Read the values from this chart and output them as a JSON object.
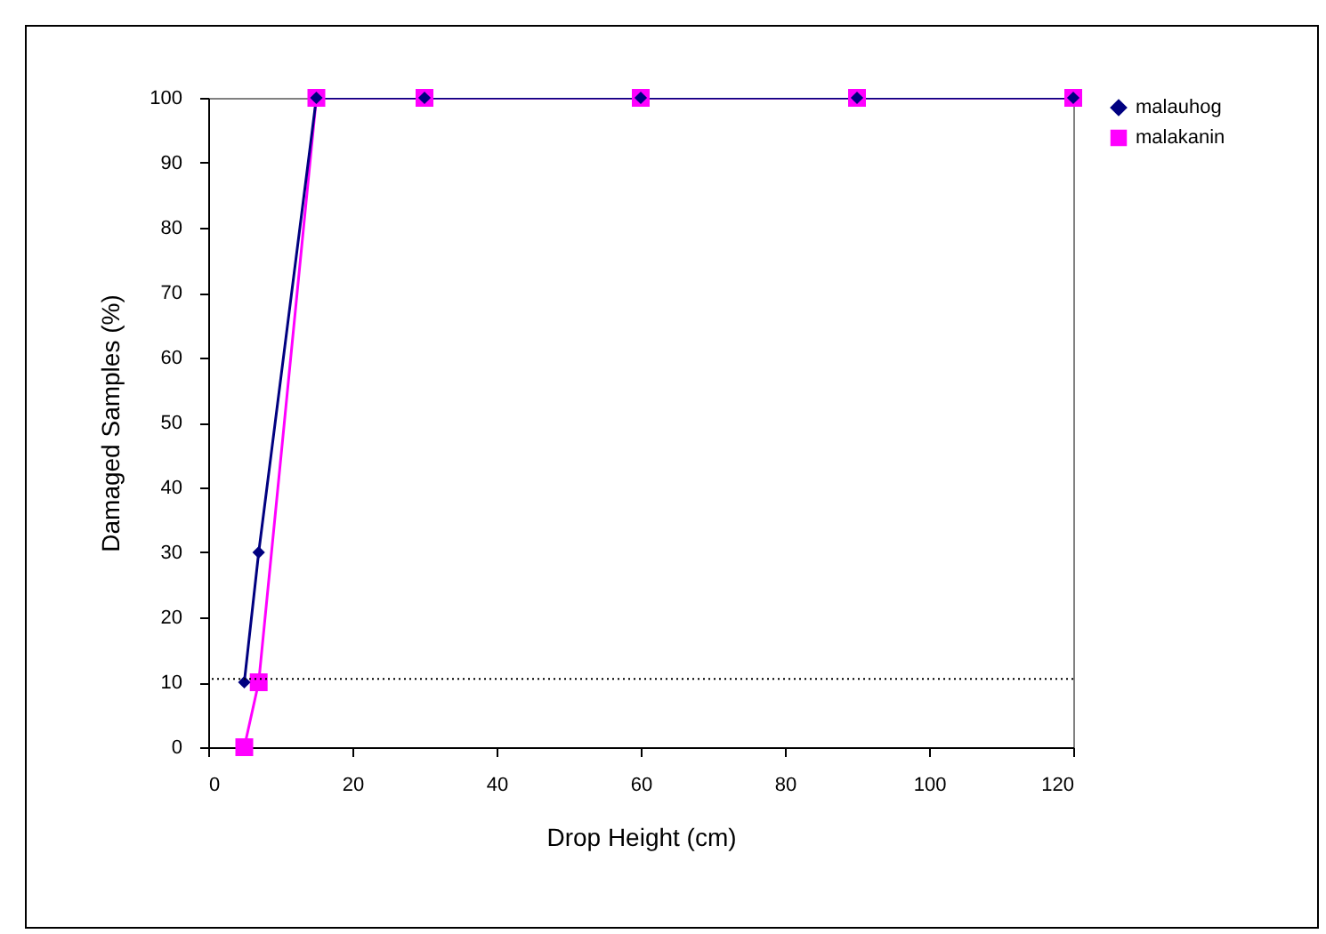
{
  "chart_data": {
    "type": "line",
    "xlabel": "Drop Height (cm)",
    "ylabel": "Damaged Samples (%)",
    "x": [
      5,
      7,
      15,
      30,
      60,
      90,
      120
    ],
    "series": [
      {
        "name": "malauhog",
        "color": "#000080",
        "marker": "diamond",
        "values": [
          10,
          30,
          100,
          100,
          100,
          100,
          100
        ]
      },
      {
        "name": "malakanin",
        "color": "#ff00ff",
        "marker": "square",
        "values": [
          0,
          10,
          100,
          100,
          100,
          100,
          100
        ]
      }
    ],
    "xlim": [
      0,
      120
    ],
    "xticks": [
      0,
      20,
      40,
      60,
      80,
      100,
      120
    ],
    "ylim": [
      0,
      100
    ],
    "yticks": [
      0,
      10,
      20,
      30,
      40,
      50,
      60,
      70,
      80,
      90,
      100
    ],
    "ref_lines": [
      {
        "axis": "y",
        "value": 10.5,
        "color": "#000000",
        "line_style": "dotted"
      }
    ],
    "legend": "right",
    "grid": false
  }
}
